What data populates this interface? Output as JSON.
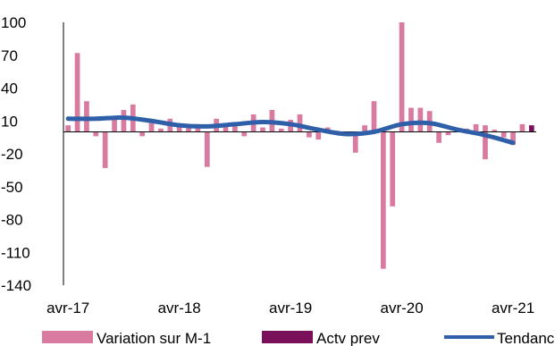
{
  "chart_data": {
    "type": "bar",
    "title": "",
    "xlabel": "",
    "ylabel": "",
    "ylim": [
      -140,
      100
    ],
    "yticks": [
      100,
      70,
      40,
      10,
      -20,
      -50,
      -80,
      -110,
      -140
    ],
    "x_tick_labels": [
      "avr-17",
      "avr-18",
      "avr-19",
      "avr-20",
      "avr-21"
    ],
    "x_tick_months": [
      0,
      12,
      24,
      36,
      48
    ],
    "month_count": 51,
    "grid": false,
    "legend_position": "bottom",
    "series": [
      {
        "name": "Variation sur M-1",
        "type": "bar",
        "color": "#d97aa0",
        "months": [
          0,
          1,
          2,
          3,
          4,
          5,
          6,
          7,
          8,
          9,
          10,
          11,
          12,
          13,
          14,
          15,
          16,
          17,
          18,
          19,
          20,
          21,
          22,
          23,
          24,
          25,
          26,
          27,
          28,
          29,
          30,
          31,
          32,
          33,
          34,
          35,
          36,
          37,
          38,
          39,
          40,
          41,
          42,
          43,
          44,
          45,
          45,
          46,
          47,
          48,
          49
        ],
        "values": [
          6,
          72,
          28,
          -4,
          -33,
          13,
          20,
          25,
          -4,
          8,
          3,
          12,
          5,
          4,
          5,
          -32,
          12,
          5,
          8,
          -4,
          16,
          4,
          20,
          3,
          11,
          16,
          -5,
          -7,
          4,
          1,
          -2,
          -19,
          6,
          28,
          -125,
          -68,
          100,
          22,
          22,
          19,
          -10,
          -3,
          0,
          3,
          7,
          -25,
          6,
          2,
          -5,
          -12,
          7
        ]
      },
      {
        "name": "Actv prev",
        "type": "bar",
        "color": "#7a0f5a",
        "months": [
          50
        ],
        "values": [
          6
        ]
      },
      {
        "name": "Tendance",
        "type": "line",
        "color": "#2e5fa8",
        "months": [
          0,
          3,
          6,
          9,
          12,
          15,
          18,
          21,
          24,
          27,
          30,
          33,
          36,
          39,
          42,
          45,
          48
        ],
        "values": [
          12,
          12,
          13,
          10,
          6,
          5,
          7,
          9,
          7,
          2,
          -2,
          0,
          7,
          8,
          2,
          -3,
          -10
        ]
      }
    ]
  }
}
